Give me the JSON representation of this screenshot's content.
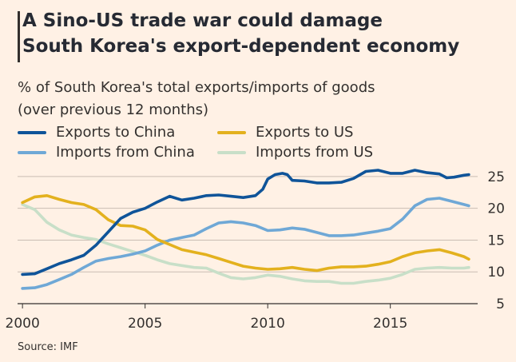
{
  "header": {
    "title_line1": "A Sino-US trade war could damage",
    "title_line2": "South Korea's export-dependent economy"
  },
  "subtitle_line1": "% of South Korea's total exports/imports of goods",
  "subtitle_line2": "(over previous 12 months)",
  "source": "Source: IMF",
  "colors": {
    "background": "#fff1e5",
    "exports_china": "#0f5499",
    "imports_china": "#6fa8d6",
    "exports_us": "#e3b11e",
    "imports_us": "#c8dfc8",
    "grid": "#c9bdb3",
    "axis": "#33302e"
  },
  "chart_data": {
    "type": "line",
    "title": "A Sino-US trade war could damage South Korea's export-dependent economy",
    "subtitle": "% of South Korea's total exports/imports of goods (over previous 12 months)",
    "xlabel": "",
    "ylabel": "",
    "xlim": [
      1999.8,
      2018.3
    ],
    "ylim": [
      5,
      27
    ],
    "x_ticks": [
      2000,
      2005,
      2010,
      2015
    ],
    "x_tick_labels": [
      "2000",
      "2005",
      "2010",
      "2015"
    ],
    "y_ticks": [
      5,
      10,
      15,
      20,
      25
    ],
    "y_tick_labels": [
      "5",
      "10",
      "15",
      "20",
      "25"
    ],
    "y_axis_side": "right",
    "grid": "horizontal",
    "legend_position": "top",
    "series": [
      {
        "name": "Exports to China",
        "color_key": "exports_china",
        "x": [
          2000,
          2000.5,
          2001,
          2001.5,
          2002,
          2002.5,
          2003,
          2003.5,
          2004,
          2004.5,
          2005,
          2005.5,
          2006,
          2006.5,
          2007,
          2007.5,
          2008,
          2008.5,
          2009,
          2009.5,
          2009.8,
          2010,
          2010.3,
          2010.6,
          2010.8,
          2011,
          2011.5,
          2012,
          2012.5,
          2013,
          2013.5,
          2014,
          2014.5,
          2015,
          2015.5,
          2016,
          2016.5,
          2017,
          2017.3,
          2017.6,
          2018,
          2018.2
        ],
        "y": [
          9.6,
          9.7,
          10.5,
          11.3,
          11.9,
          12.6,
          14.2,
          16.3,
          18.4,
          19.4,
          20.0,
          21.0,
          21.9,
          21.3,
          21.6,
          22.0,
          22.1,
          21.9,
          21.7,
          22.0,
          23.0,
          24.6,
          25.3,
          25.5,
          25.3,
          24.4,
          24.3,
          24.0,
          24.0,
          24.1,
          24.7,
          25.8,
          26.0,
          25.5,
          25.5,
          26.0,
          25.6,
          25.4,
          24.8,
          24.9,
          25.2,
          25.3
        ]
      },
      {
        "name": "Imports from China",
        "color_key": "imports_china",
        "x": [
          2000,
          2000.5,
          2001,
          2001.5,
          2002,
          2002.5,
          2003,
          2003.5,
          2004,
          2004.5,
          2005,
          2005.5,
          2006,
          2006.5,
          2007,
          2007.5,
          2008,
          2008.5,
          2009,
          2009.5,
          2010,
          2010.5,
          2011,
          2011.5,
          2012,
          2012.5,
          2013,
          2013.5,
          2014,
          2014.5,
          2015,
          2015.5,
          2016,
          2016.5,
          2017,
          2017.5,
          2018,
          2018.2
        ],
        "y": [
          7.4,
          7.5,
          8.0,
          8.8,
          9.6,
          10.7,
          11.7,
          12.1,
          12.4,
          12.8,
          13.3,
          14.2,
          15.0,
          15.4,
          15.8,
          16.8,
          17.7,
          17.9,
          17.7,
          17.3,
          16.5,
          16.6,
          16.9,
          16.7,
          16.2,
          15.7,
          15.7,
          15.8,
          16.1,
          16.4,
          16.8,
          18.3,
          20.4,
          21.4,
          21.6,
          21.1,
          20.6,
          20.4
        ]
      },
      {
        "name": "Exports to US",
        "color_key": "exports_us",
        "x": [
          2000,
          2000.5,
          2001,
          2001.5,
          2002,
          2002.5,
          2003,
          2003.5,
          2004,
          2004.5,
          2005,
          2005.5,
          2006,
          2006.5,
          2007,
          2007.5,
          2008,
          2008.5,
          2009,
          2009.5,
          2010,
          2010.5,
          2011,
          2011.5,
          2012,
          2012.5,
          2013,
          2013.5,
          2014,
          2014.5,
          2015,
          2015.5,
          2016,
          2016.5,
          2017,
          2017.5,
          2018,
          2018.2
        ],
        "y": [
          20.9,
          21.8,
          22.0,
          21.4,
          20.9,
          20.6,
          19.8,
          18.2,
          17.3,
          17.2,
          16.6,
          15.1,
          14.3,
          13.5,
          13.1,
          12.7,
          12.1,
          11.5,
          10.9,
          10.6,
          10.4,
          10.5,
          10.7,
          10.4,
          10.2,
          10.6,
          10.8,
          10.8,
          10.9,
          11.2,
          11.6,
          12.4,
          13.0,
          13.3,
          13.5,
          13.0,
          12.4,
          12.0
        ]
      },
      {
        "name": "Imports from US",
        "color_key": "imports_us",
        "x": [
          2000,
          2000.5,
          2001,
          2001.5,
          2002,
          2002.5,
          2003,
          2003.5,
          2004,
          2004.5,
          2005,
          2005.5,
          2006,
          2006.5,
          2007,
          2007.5,
          2008,
          2008.5,
          2009,
          2009.5,
          2010,
          2010.5,
          2011,
          2011.5,
          2012,
          2012.5,
          2013,
          2013.5,
          2014,
          2014.5,
          2015,
          2015.5,
          2016,
          2016.5,
          2017,
          2017.5,
          2018,
          2018.2
        ],
        "y": [
          20.6,
          19.8,
          17.8,
          16.6,
          15.8,
          15.4,
          15.1,
          14.4,
          13.8,
          13.2,
          12.6,
          11.9,
          11.3,
          11.0,
          10.7,
          10.6,
          9.8,
          9.1,
          8.9,
          9.1,
          9.5,
          9.3,
          8.9,
          8.6,
          8.5,
          8.5,
          8.2,
          8.2,
          8.5,
          8.7,
          9.0,
          9.6,
          10.4,
          10.6,
          10.7,
          10.6,
          10.6,
          10.7
        ]
      }
    ]
  }
}
